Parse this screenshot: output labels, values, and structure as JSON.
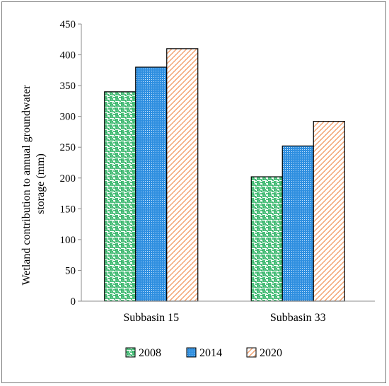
{
  "chart_data": {
    "type": "bar",
    "title": "",
    "xlabel": "",
    "ylabel": "Wetland contribution to annual groundwater storage (mm)",
    "ylabel_lines": [
      "Wetland contribution to annual groundwater",
      "storage (mm)"
    ],
    "categories": [
      "Subbasin 15",
      "Subbasin 33"
    ],
    "series": [
      {
        "name": "2008",
        "values": [
          340,
          202
        ],
        "color": "#1fae5a",
        "pattern": "weave"
      },
      {
        "name": "2014",
        "values": [
          380,
          252
        ],
        "color": "#2f8fe0",
        "pattern": "dots"
      },
      {
        "name": "2020",
        "values": [
          410,
          292
        ],
        "color": "#f08a4b",
        "pattern": "diag"
      }
    ],
    "ylim": [
      0,
      450
    ],
    "yticks": [
      0,
      50,
      100,
      150,
      200,
      250,
      300,
      350,
      400,
      450
    ],
    "grid": false,
    "legend_position": "bottom"
  }
}
